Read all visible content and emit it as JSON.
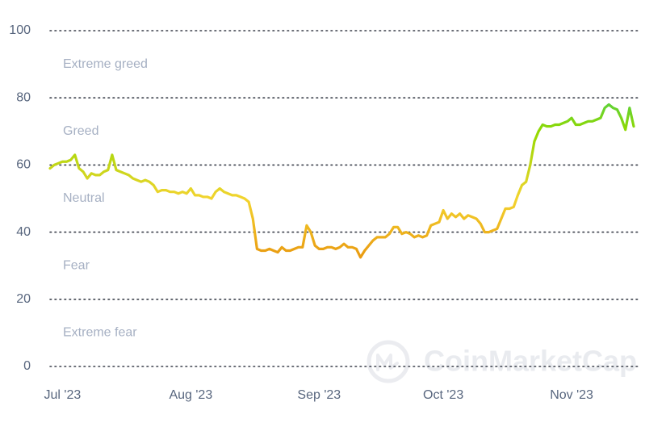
{
  "chart_data": {
    "type": "line",
    "categories": [
      null,
      null,
      null,
      "Jul '23",
      null,
      null,
      null,
      null,
      null,
      null,
      null,
      null,
      null,
      null,
      null,
      null,
      null,
      null,
      null,
      null,
      null,
      null,
      null,
      null,
      null,
      null,
      null,
      null,
      null,
      null,
      null,
      null,
      null,
      null,
      "Aug '23",
      null,
      null,
      null,
      null,
      null,
      null,
      null,
      null,
      null,
      null,
      null,
      null,
      null,
      null,
      null,
      null,
      null,
      null,
      null,
      null,
      null,
      null,
      null,
      null,
      null,
      null,
      null,
      null,
      null,
      null,
      "Sep '23",
      null,
      null,
      null,
      null,
      null,
      null,
      null,
      null,
      null,
      null,
      null,
      null,
      null,
      null,
      null,
      null,
      null,
      null,
      null,
      null,
      null,
      null,
      null,
      null,
      null,
      null,
      null,
      null,
      null,
      "Oct '23",
      null,
      null,
      null,
      null,
      null,
      null,
      null,
      null,
      null,
      null,
      null,
      null,
      null,
      null,
      null,
      null,
      null,
      null,
      null,
      null,
      null,
      null,
      null,
      null,
      null,
      null,
      null,
      null,
      null,
      null,
      "Nov '23",
      null,
      null,
      null,
      null,
      null,
      null,
      null,
      null,
      null,
      null,
      null,
      null,
      null,
      null,
      null
    ],
    "values": [
      59,
      60,
      60.5,
      61,
      61,
      61.5,
      63,
      59,
      58,
      56,
      57.5,
      57,
      57,
      58,
      58.5,
      63,
      58.5,
      58,
      57.5,
      57,
      56,
      55.5,
      55,
      55.5,
      55,
      54,
      52,
      52.5,
      52.5,
      52,
      52,
      51.5,
      52,
      51.5,
      53,
      51,
      51,
      50.5,
      50.5,
      50,
      52,
      53,
      52,
      51.5,
      51,
      51,
      50.5,
      50,
      49,
      44,
      35,
      34.5,
      34.5,
      35,
      34.5,
      34,
      35.5,
      34.5,
      34.5,
      35,
      35.5,
      35.5,
      42,
      40,
      36,
      35,
      35,
      35.5,
      35.5,
      35,
      35.5,
      36.5,
      35.5,
      35.5,
      35,
      32.5,
      34.5,
      36,
      37.5,
      38.5,
      38.5,
      38.5,
      39.5,
      41.5,
      41.5,
      39.5,
      40,
      39.5,
      38.5,
      39,
      38.5,
      39,
      42,
      42.5,
      43,
      46.5,
      44,
      45.5,
      44.5,
      45.5,
      44,
      45,
      44.5,
      44,
      42.5,
      40,
      40,
      40.5,
      41,
      44,
      47,
      47,
      47.5,
      51,
      54,
      55,
      60,
      67,
      70,
      72,
      71.5,
      71.5,
      72,
      72,
      72.5,
      73,
      74,
      72,
      72,
      72.5,
      73,
      73,
      73.5,
      74,
      77,
      78,
      77,
      76.5,
      74,
      70.5,
      77,
      71.5
    ],
    "ylim": [
      0,
      100
    ],
    "yticks": [
      0,
      20,
      40,
      60,
      80,
      100
    ],
    "grid": true,
    "zones": [
      {
        "label": "Extreme greed",
        "color": "#16c784"
      },
      {
        "label": "Greed",
        "color": "#93d900"
      },
      {
        "label": "Neutral",
        "color": "#f3d42f"
      },
      {
        "label": "Fear",
        "color": "#e8920c"
      },
      {
        "label": "Extreme fear",
        "color": "#ea3943"
      }
    ],
    "watermark": "CoinMarketCap"
  }
}
